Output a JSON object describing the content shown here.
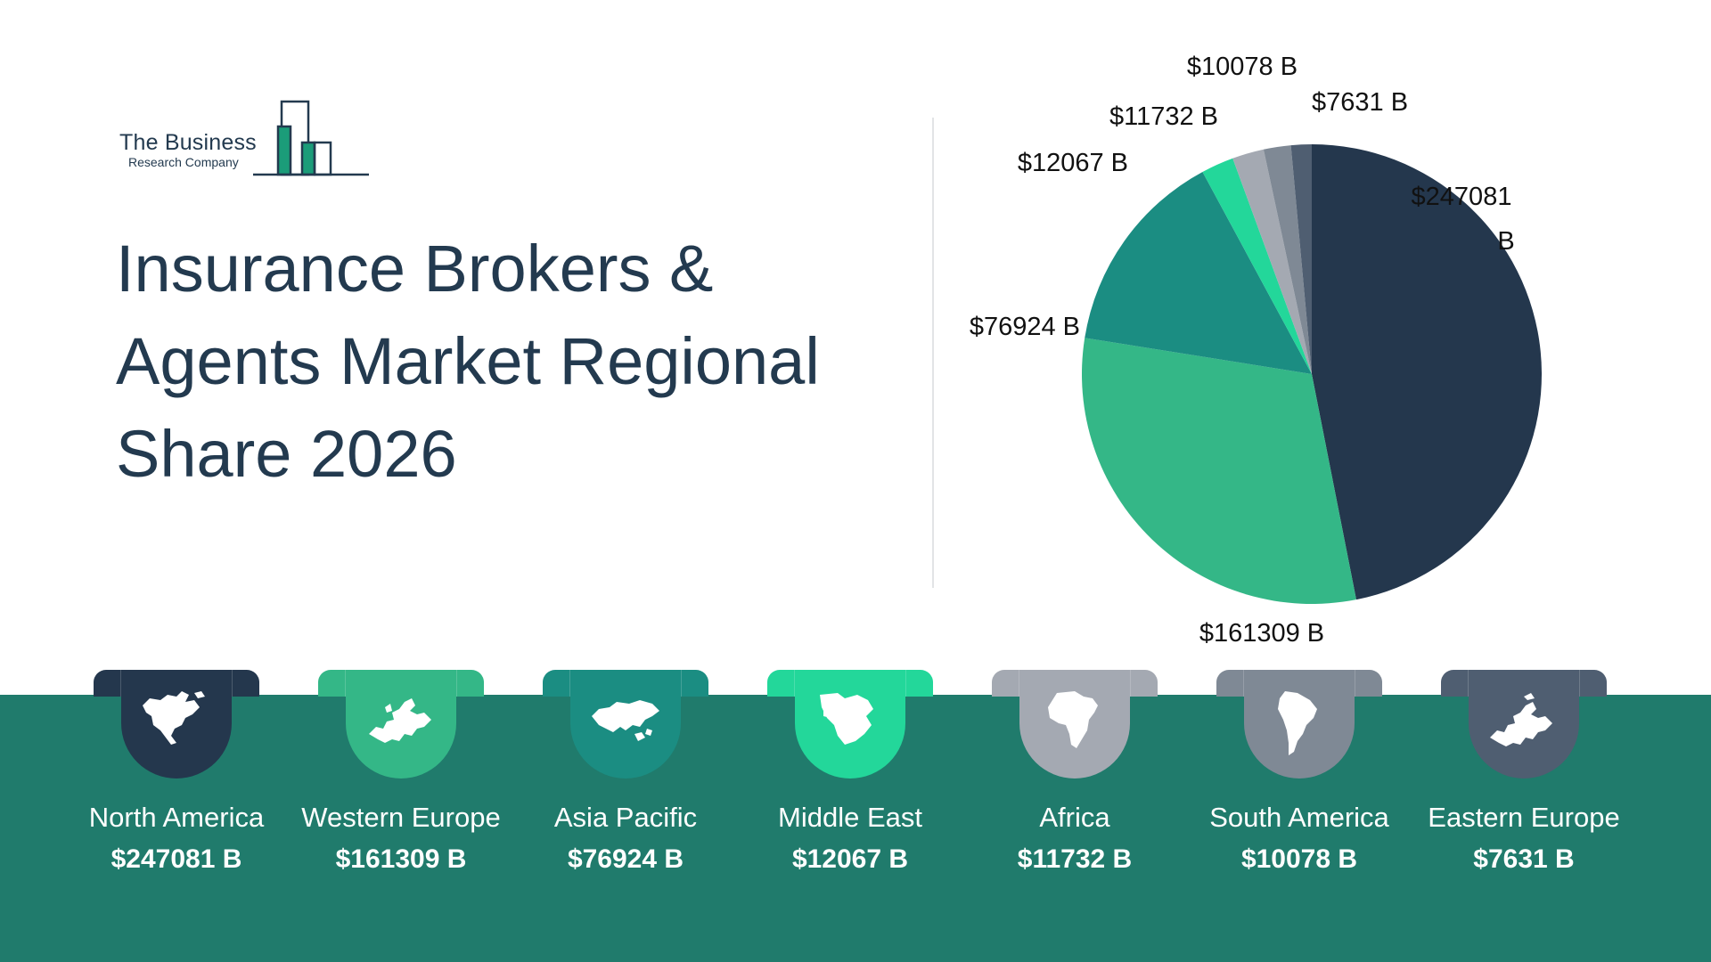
{
  "logo": {
    "line1": "The Business",
    "line2": "Research Company"
  },
  "title": "Insurance Brokers & Agents Market Regional Share 2026",
  "chart_data": {
    "type": "pie",
    "title": "Insurance Brokers & Agents Market Regional Share 2026",
    "unit": "B",
    "slices": [
      {
        "name": "North America",
        "value": 247081,
        "label": "$247081 B",
        "color": "#24374d"
      },
      {
        "name": "Western Europe",
        "value": 161309,
        "label": "$161309 B",
        "color": "#34b787"
      },
      {
        "name": "Asia Pacific",
        "value": 76924,
        "label": "$76924 B",
        "color": "#1b8d82"
      },
      {
        "name": "Middle East",
        "value": 12067,
        "label": "$12067 B",
        "color": "#23d79a"
      },
      {
        "name": "Africa",
        "value": 11732,
        "label": "$11732 B",
        "color": "#a4a9b2"
      },
      {
        "name": "South America",
        "value": 10078,
        "label": "$10078 B",
        "color": "#7f8995"
      },
      {
        "name": "Eastern Europe",
        "value": 7631,
        "label": "$7631 B",
        "color": "#4f5e71"
      }
    ]
  },
  "regions": [
    {
      "name": "North America",
      "value": "$247081 B",
      "color": "#24374d",
      "icon": "north-america-map-icon"
    },
    {
      "name": "Western Europe",
      "value": "$161309 B",
      "color": "#34b787",
      "icon": "western-europe-map-icon"
    },
    {
      "name": "Asia Pacific",
      "value": "$76924 B",
      "color": "#1b8d82",
      "icon": "asia-pacific-map-icon"
    },
    {
      "name": "Middle East",
      "value": "$12067 B",
      "color": "#23d79a",
      "icon": "middle-east-map-icon"
    },
    {
      "name": "Africa",
      "value": "$11732 B",
      "color": "#a4a9b2",
      "icon": "africa-map-icon"
    },
    {
      "name": "South America",
      "value": "$10078 B",
      "color": "#7f8995",
      "icon": "south-america-map-icon"
    },
    {
      "name": "Eastern Europe",
      "value": "$7631 B",
      "color": "#4f5e71",
      "icon": "eastern-europe-map-icon"
    }
  ],
  "colors": {
    "band": "#207b6c",
    "title": "#233a4f"
  }
}
